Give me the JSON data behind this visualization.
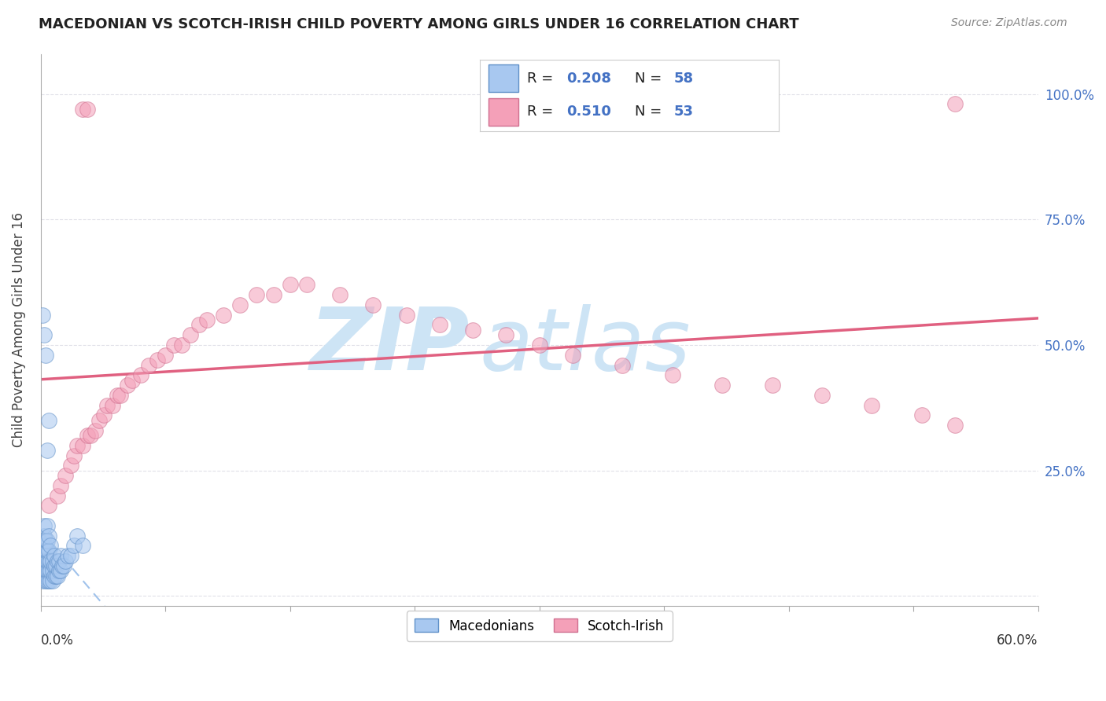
{
  "title": "MACEDONIAN VS SCOTCH-IRISH CHILD POVERTY AMONG GIRLS UNDER 16 CORRELATION CHART",
  "source": "Source: ZipAtlas.com",
  "ylabel": "Child Poverty Among Girls Under 16",
  "xlim": [
    0.0,
    0.6
  ],
  "ylim": [
    -0.02,
    1.08
  ],
  "macedonian_R": 0.208,
  "macedonian_N": 58,
  "scotchirish_R": 0.51,
  "scotchirish_N": 53,
  "macedonian_color": "#a8c8f0",
  "scotchirish_color": "#f4a0b8",
  "trendline_macedonian_color": "#90b8e8",
  "trendline_scotchirish_color": "#e06080",
  "macedonian_dot_edge": "#6090c8",
  "scotchirish_dot_edge": "#d07090",
  "macedonian_x": [
    0.001,
    0.001,
    0.001,
    0.001,
    0.001,
    0.002,
    0.002,
    0.002,
    0.002,
    0.002,
    0.002,
    0.003,
    0.003,
    0.003,
    0.003,
    0.003,
    0.004,
    0.004,
    0.004,
    0.004,
    0.004,
    0.004,
    0.005,
    0.005,
    0.005,
    0.005,
    0.005,
    0.006,
    0.006,
    0.006,
    0.006,
    0.007,
    0.007,
    0.007,
    0.008,
    0.008,
    0.008,
    0.009,
    0.009,
    0.01,
    0.01,
    0.011,
    0.011,
    0.012,
    0.012,
    0.013,
    0.014,
    0.015,
    0.016,
    0.018,
    0.02,
    0.022,
    0.025,
    0.001,
    0.002,
    0.003,
    0.004,
    0.005
  ],
  "macedonian_y": [
    0.03,
    0.05,
    0.07,
    0.08,
    0.1,
    0.04,
    0.06,
    0.08,
    0.1,
    0.12,
    0.14,
    0.03,
    0.05,
    0.07,
    0.09,
    0.11,
    0.03,
    0.05,
    0.07,
    0.09,
    0.11,
    0.14,
    0.03,
    0.05,
    0.07,
    0.09,
    0.12,
    0.03,
    0.05,
    0.07,
    0.1,
    0.03,
    0.05,
    0.07,
    0.04,
    0.06,
    0.08,
    0.04,
    0.06,
    0.04,
    0.07,
    0.05,
    0.07,
    0.05,
    0.08,
    0.06,
    0.06,
    0.07,
    0.08,
    0.08,
    0.1,
    0.12,
    0.1,
    0.56,
    0.52,
    0.48,
    0.29,
    0.35
  ],
  "scotchirish_x": [
    0.005,
    0.01,
    0.012,
    0.015,
    0.018,
    0.02,
    0.022,
    0.025,
    0.028,
    0.03,
    0.033,
    0.035,
    0.038,
    0.04,
    0.043,
    0.046,
    0.048,
    0.052,
    0.055,
    0.06,
    0.065,
    0.07,
    0.075,
    0.08,
    0.085,
    0.09,
    0.095,
    0.1,
    0.11,
    0.12,
    0.13,
    0.14,
    0.15,
    0.16,
    0.18,
    0.2,
    0.22,
    0.24,
    0.26,
    0.28,
    0.3,
    0.32,
    0.35,
    0.38,
    0.41,
    0.44,
    0.47,
    0.5,
    0.53,
    0.55,
    0.025,
    0.028,
    0.55
  ],
  "scotchirish_y": [
    0.18,
    0.2,
    0.22,
    0.24,
    0.26,
    0.28,
    0.3,
    0.3,
    0.32,
    0.32,
    0.33,
    0.35,
    0.36,
    0.38,
    0.38,
    0.4,
    0.4,
    0.42,
    0.43,
    0.44,
    0.46,
    0.47,
    0.48,
    0.5,
    0.5,
    0.52,
    0.54,
    0.55,
    0.56,
    0.58,
    0.6,
    0.6,
    0.62,
    0.62,
    0.6,
    0.58,
    0.56,
    0.54,
    0.53,
    0.52,
    0.5,
    0.48,
    0.46,
    0.44,
    0.42,
    0.42,
    0.4,
    0.38,
    0.36,
    0.34,
    0.97,
    0.97,
    0.98
  ],
  "watermark_zip": "ZIP",
  "watermark_atlas": "atlas",
  "watermark_color": "#cde4f5",
  "background_color": "#ffffff",
  "grid_color": "#e0e0e8",
  "right_yticks": [
    0.25,
    0.5,
    0.75,
    1.0
  ],
  "right_yticklabels": [
    "25.0%",
    "50.0%",
    "75.0%",
    "100.0%"
  ],
  "legend_R1": "R = 0.208",
  "legend_N1": "N = 58",
  "legend_R2": "R = 0.510",
  "legend_N2": "N = 53",
  "bottom_legend1": "Macedonians",
  "bottom_legend2": "Scotch-Irish"
}
